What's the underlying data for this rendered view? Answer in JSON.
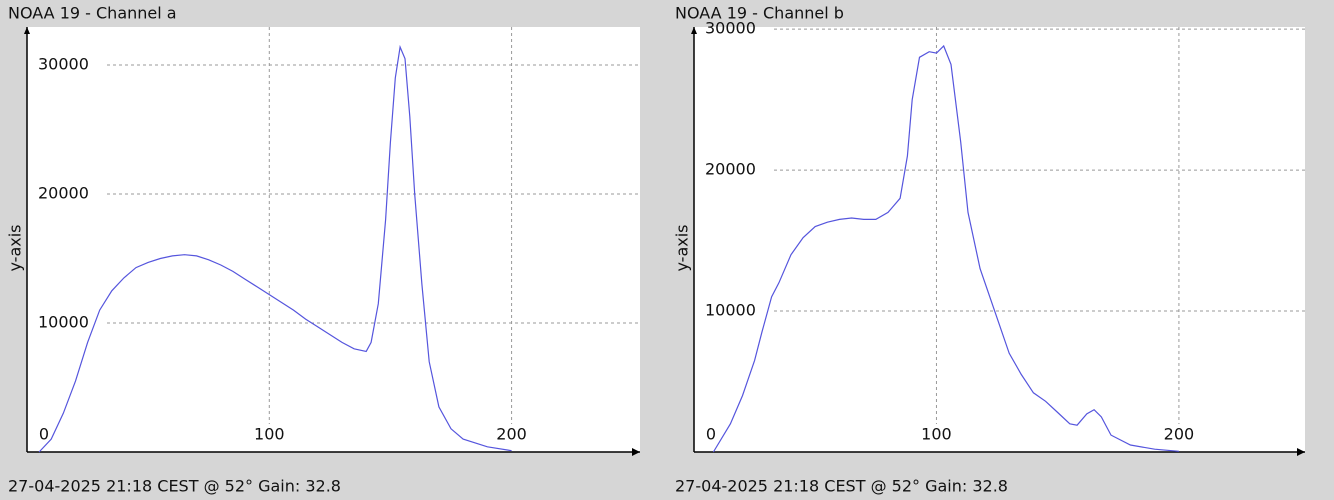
{
  "chart_data": [
    {
      "type": "line",
      "title": "NOAA 19 - Channel a",
      "footer": "27-04-2025 21:18 CEST @ 52° Gain: 32.8",
      "y_label": "y-axis",
      "color": "#5555dd",
      "grid": true,
      "xlim": [
        0,
        253
      ],
      "ylim": [
        0,
        32950
      ],
      "xticks": [
        0,
        100,
        200
      ],
      "yticks": [
        10000,
        20000,
        30000
      ],
      "x": [
        5,
        10,
        15,
        20,
        25,
        30,
        35,
        40,
        45,
        50,
        55,
        60,
        65,
        70,
        75,
        80,
        85,
        90,
        95,
        100,
        105,
        110,
        115,
        120,
        125,
        130,
        135,
        140,
        142,
        145,
        148,
        150,
        152,
        154,
        156,
        158,
        160,
        163,
        166,
        170,
        175,
        180,
        190,
        200
      ],
      "values": [
        0,
        1000,
        3000,
        5500,
        8500,
        11000,
        12500,
        13500,
        14300,
        14700,
        15000,
        15200,
        15300,
        15200,
        14900,
        14500,
        14000,
        13400,
        12800,
        12200,
        11600,
        11000,
        10300,
        9700,
        9100,
        8500,
        8000,
        7800,
        8500,
        11500,
        18000,
        24000,
        29000,
        31400,
        30500,
        26000,
        20000,
        13000,
        7000,
        3500,
        1800,
        1000,
        400,
        100
      ]
    },
    {
      "type": "line",
      "title": "NOAA 19 - Channel b",
      "footer": "27-04-2025 21:18 CEST @ 52° Gain: 32.8",
      "y_label": "y-axis",
      "color": "#5555dd",
      "grid": true,
      "xlim": [
        0,
        252
      ],
      "ylim": [
        0,
        30150
      ],
      "xticks": [
        0,
        100,
        200
      ],
      "yticks": [
        10000,
        20000,
        30000
      ],
      "x": [
        8,
        15,
        20,
        25,
        28,
        32,
        35,
        40,
        45,
        50,
        55,
        60,
        65,
        70,
        75,
        80,
        85,
        88,
        90,
        93,
        97,
        100,
        103,
        106,
        110,
        113,
        118,
        125,
        130,
        135,
        140,
        145,
        150,
        155,
        158,
        162,
        165,
        168,
        172,
        180,
        190,
        200
      ],
      "values": [
        0,
        2000,
        4000,
        6500,
        8500,
        11000,
        12000,
        14000,
        15200,
        16000,
        16300,
        16500,
        16600,
        16500,
        16500,
        17000,
        18000,
        21000,
        25000,
        28000,
        28400,
        28300,
        28800,
        27500,
        22000,
        17000,
        13000,
        9500,
        7000,
        5500,
        4200,
        3600,
        2800,
        2000,
        1900,
        2700,
        3000,
        2500,
        1200,
        500,
        200,
        50
      ]
    }
  ]
}
